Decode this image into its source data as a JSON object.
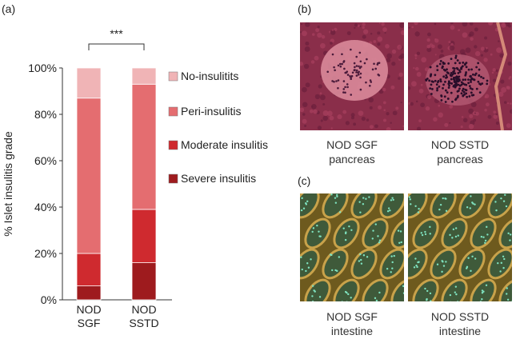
{
  "panels": {
    "a": "(a)",
    "b": "(b)",
    "c": "(c)"
  },
  "chart_data": {
    "type": "bar",
    "stacked": true,
    "ylabel": "% Islet insulitis grade",
    "ylim": [
      0,
      100
    ],
    "yticks": [
      "0%",
      "20%",
      "40%",
      "60%",
      "80%",
      "100%"
    ],
    "categories": [
      "NOD SGF",
      "NOD SSTD"
    ],
    "category_lines": [
      [
        "NOD",
        "SGF"
      ],
      [
        "NOD",
        "SSTD"
      ]
    ],
    "series": [
      {
        "name": "Severe insulitis",
        "color": "#9e1b1e",
        "values": [
          6,
          16
        ]
      },
      {
        "name": "Moderate insulitis",
        "color": "#cf2a2f",
        "values": [
          14,
          23
        ]
      },
      {
        "name": "Peri-insulitis",
        "color": "#e46d70",
        "values": [
          67,
          54
        ]
      },
      {
        "name": "No-insulitits",
        "color": "#f0b4b6",
        "values": [
          13,
          7
        ]
      }
    ],
    "legend_order": [
      "No-insulitits",
      "Peri-insulitis",
      "Moderate insulitis",
      "Severe insulitis"
    ],
    "legend_position": "right",
    "significance": "***"
  },
  "images": [
    {
      "caption": [
        "NOD SGF",
        "pancreas"
      ],
      "kind": "pancreas-normal"
    },
    {
      "caption": [
        "NOD SSTD",
        "pancreas"
      ],
      "kind": "pancreas-insulitis"
    },
    {
      "caption": [
        "NOD SGF",
        "intestine"
      ],
      "kind": "intestine"
    },
    {
      "caption": [
        "NOD SSTD",
        "intestine"
      ],
      "kind": "intestine"
    }
  ]
}
